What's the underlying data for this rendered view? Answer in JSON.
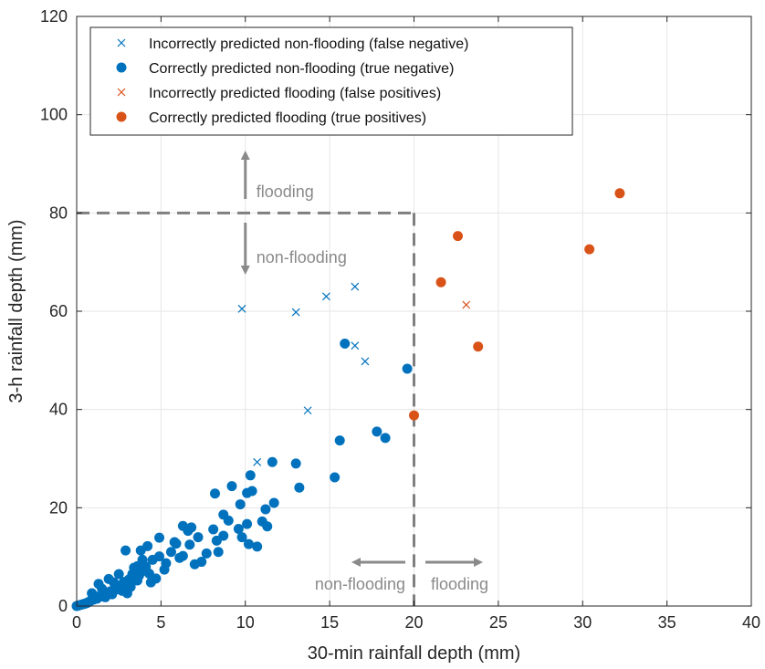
{
  "chart_data": {
    "type": "scatter",
    "xlabel": "30-min rainfall depth (mm)",
    "ylabel": "3-h rainfall depth (mm)",
    "xlim": [
      0,
      40
    ],
    "ylim": [
      0,
      120
    ],
    "xticks": [
      0,
      5,
      10,
      15,
      20,
      25,
      30,
      35,
      40
    ],
    "yticks": [
      0,
      20,
      40,
      60,
      80,
      100,
      120
    ],
    "grid": true,
    "legend_position": "top-left",
    "colors": {
      "blue": "#0072BD",
      "orange": "#D95319",
      "threshold": "#7f7f7f",
      "annotation": "#8a8a8a"
    },
    "series": [
      {
        "name": "Incorrectly predicted non-flooding (false negative)",
        "marker": "x",
        "color": "#0072BD",
        "points": [
          [
            9.8,
            60.5
          ],
          [
            13.0,
            59.8
          ],
          [
            14.8,
            63.0
          ],
          [
            16.5,
            65.0
          ],
          [
            16.5,
            53.0
          ],
          [
            17.1,
            49.8
          ],
          [
            13.7,
            39.8
          ],
          [
            10.7,
            29.3
          ]
        ]
      },
      {
        "name": "Correctly predicted non-flooding (true negative)",
        "marker": "o",
        "color": "#0072BD",
        "points": [
          [
            15.9,
            53.4
          ],
          [
            19.6,
            48.3
          ],
          [
            17.8,
            35.5
          ],
          [
            18.3,
            34.2
          ],
          [
            15.6,
            33.7
          ],
          [
            13.0,
            29.0
          ],
          [
            13.2,
            24.1
          ],
          [
            15.3,
            26.2
          ],
          [
            11.6,
            29.3
          ],
          [
            11.7,
            21.0
          ],
          [
            10.1,
            23.0
          ],
          [
            10.3,
            26.6
          ],
          [
            10.4,
            23.4
          ],
          [
            9.7,
            20.7
          ],
          [
            11.2,
            19.7
          ],
          [
            11.0,
            17.2
          ],
          [
            11.3,
            16.2
          ],
          [
            10.1,
            16.7
          ],
          [
            9.6,
            15.7
          ],
          [
            9.0,
            17.4
          ],
          [
            9.2,
            24.4
          ],
          [
            8.2,
            22.9
          ],
          [
            8.7,
            18.6
          ],
          [
            8.7,
            14.3
          ],
          [
            8.1,
            15.6
          ],
          [
            8.3,
            13.3
          ],
          [
            9.8,
            14.0
          ],
          [
            10.2,
            12.6
          ],
          [
            10.7,
            12.1
          ],
          [
            8.4,
            11.0
          ],
          [
            7.7,
            10.7
          ],
          [
            7.4,
            9.0
          ],
          [
            6.7,
            12.5
          ],
          [
            6.6,
            15.3
          ],
          [
            6.3,
            16.3
          ],
          [
            6.8,
            16.0
          ],
          [
            7.2,
            14.0
          ],
          [
            6.3,
            10.2
          ],
          [
            5.9,
            12.7
          ],
          [
            5.6,
            11.0
          ],
          [
            5.3,
            8.7
          ],
          [
            4.9,
            10.1
          ],
          [
            4.9,
            13.9
          ],
          [
            4.2,
            12.2
          ],
          [
            4.5,
            9.4
          ],
          [
            4.1,
            8.0
          ],
          [
            3.8,
            11.3
          ],
          [
            4.3,
            6.6
          ],
          [
            4.0,
            7.2
          ],
          [
            3.7,
            6.2
          ],
          [
            3.6,
            8.1
          ],
          [
            3.3,
            6.5
          ],
          [
            3.1,
            5.4
          ],
          [
            2.9,
            11.3
          ],
          [
            3.2,
            3.9
          ],
          [
            2.8,
            4.9
          ],
          [
            2.6,
            4.2
          ],
          [
            2.4,
            3.4
          ],
          [
            2.2,
            4.8
          ],
          [
            2.0,
            3.0
          ],
          [
            1.8,
            2.6
          ],
          [
            1.6,
            2.3
          ],
          [
            1.4,
            1.9
          ],
          [
            1.3,
            4.5
          ],
          [
            1.2,
            1.5
          ],
          [
            1.0,
            1.3
          ],
          [
            0.9,
            2.6
          ],
          [
            0.8,
            1.0
          ],
          [
            0.7,
            0.8
          ],
          [
            0.6,
            0.6
          ],
          [
            0.5,
            0.5
          ],
          [
            0.4,
            0.4
          ],
          [
            0.3,
            0.3
          ],
          [
            0.2,
            0.2
          ],
          [
            0.1,
            0.1
          ],
          [
            0.0,
            0.0
          ],
          [
            1.5,
            3.5
          ],
          [
            1.9,
            5.5
          ],
          [
            2.5,
            6.5
          ],
          [
            3.4,
            7.8
          ],
          [
            3.9,
            9.4
          ],
          [
            4.7,
            5.6
          ],
          [
            5.2,
            7.4
          ],
          [
            6.1,
            9.8
          ],
          [
            7.0,
            8.5
          ],
          [
            5.8,
            13.0
          ],
          [
            4.4,
            4.8
          ],
          [
            3.6,
            5.2
          ],
          [
            2.1,
            2.4
          ],
          [
            2.7,
            3.1
          ],
          [
            3.0,
            2.6
          ],
          [
            2.3,
            4.0
          ],
          [
            1.1,
            2.0
          ],
          [
            1.7,
            1.8
          ]
        ]
      },
      {
        "name": "Incorrectly predicted flooding (false positives)",
        "marker": "x",
        "color": "#D95319",
        "points": [
          [
            23.1,
            61.3
          ]
        ]
      },
      {
        "name": "Correctly predicted flooding (true positives)",
        "marker": "o",
        "color": "#D95319",
        "points": [
          [
            32.2,
            84.0
          ],
          [
            22.6,
            75.3
          ],
          [
            30.4,
            72.6
          ],
          [
            21.6,
            65.9
          ],
          [
            23.8,
            52.8
          ],
          [
            20.0,
            38.8
          ]
        ]
      }
    ],
    "thresholds": {
      "x": 20,
      "y": 80
    },
    "annotations": {
      "vertical_up": "flooding",
      "vertical_down": "non-flooding",
      "horizontal_left": "non-flooding",
      "horizontal_right": "flooding"
    }
  }
}
